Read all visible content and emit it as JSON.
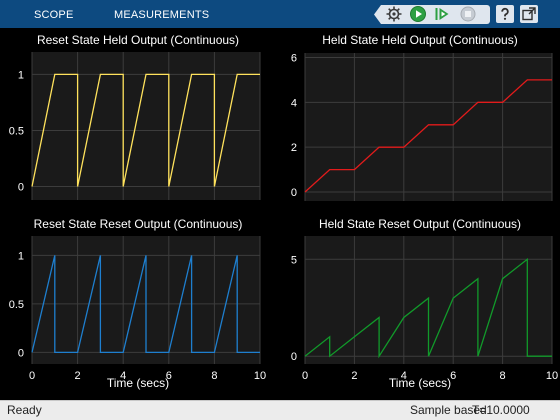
{
  "toolstrip": {
    "tabs": [
      {
        "label": "SCOPE"
      },
      {
        "label": "MEASUREMENTS"
      }
    ],
    "icons": [
      "scope-settings-icon",
      "run-icon",
      "step-forward-icon",
      "stop-icon",
      "help-icon",
      "undock-icon"
    ]
  },
  "colors": {
    "toolstrip": "#0d4a80",
    "axes_background": "#1a1a1a",
    "grid": "#3c3c3c",
    "axis_text": "#ffffff",
    "series": [
      "#ffe25c",
      "#e21b1b",
      "#1e7fcf",
      "#119a2a"
    ]
  },
  "chart_data": [
    {
      "type": "line",
      "title": "Reset State Held Output (Continuous)",
      "xlabel": "",
      "xlim": [
        0,
        10
      ],
      "ylim": [
        -0.12,
        1.2
      ],
      "x_ticks": [],
      "y_ticks": [
        0,
        0.5,
        1
      ],
      "y_tick_labels": [
        "0",
        "0.5",
        "1"
      ],
      "grid": true,
      "series": [
        {
          "x": [
            0,
            1,
            2,
            2,
            3,
            4,
            4,
            5,
            6,
            6,
            7,
            8,
            8,
            9,
            10
          ],
          "y": [
            0,
            1,
            1,
            0,
            1,
            1,
            0,
            1,
            1,
            0,
            1,
            1,
            0,
            1,
            1
          ]
        }
      ]
    },
    {
      "type": "line",
      "title": "Held State Held Output (Continuous)",
      "xlabel": "",
      "xlim": [
        0,
        10
      ],
      "ylim": [
        -0.4,
        6.2
      ],
      "x_ticks": [],
      "y_ticks": [
        0,
        2,
        4,
        6
      ],
      "y_tick_labels": [
        "0",
        "2",
        "4",
        "6"
      ],
      "grid": true,
      "series": [
        {
          "x": [
            0,
            1,
            2,
            3,
            4,
            5,
            6,
            7,
            8,
            9,
            10
          ],
          "y": [
            0,
            1,
            1,
            2,
            2,
            3,
            3,
            4,
            4,
            5,
            5
          ]
        }
      ]
    },
    {
      "type": "line",
      "title": "Reset State Reset Output (Continuous)",
      "xlabel": "Time (secs)",
      "xlim": [
        0,
        10
      ],
      "ylim": [
        -0.12,
        1.2
      ],
      "x_ticks": [
        0,
        2,
        4,
        6,
        8,
        10
      ],
      "x_tick_labels": [
        "0",
        "2",
        "4",
        "6",
        "8",
        "10"
      ],
      "y_ticks": [
        0,
        0.5,
        1
      ],
      "y_tick_labels": [
        "0",
        "0.5",
        "1"
      ],
      "grid": true,
      "series": [
        {
          "x": [
            0,
            1,
            1,
            2,
            3,
            3,
            4,
            5,
            5,
            6,
            7,
            7,
            8,
            9,
            9,
            10
          ],
          "y": [
            0,
            1,
            0,
            0,
            1,
            0,
            0,
            1,
            0,
            0,
            1,
            0,
            0,
            1,
            0,
            0
          ]
        }
      ]
    },
    {
      "type": "line",
      "title": "Held State Reset Output (Continuous)",
      "xlabel": "Time (secs)",
      "xlim": [
        0,
        10
      ],
      "ylim": [
        -0.4,
        6.2
      ],
      "x_ticks": [
        0,
        2,
        4,
        6,
        8,
        10
      ],
      "x_tick_labels": [
        "0",
        "2",
        "4",
        "6",
        "8",
        "10"
      ],
      "y_ticks": [
        0,
        5
      ],
      "y_tick_labels": [
        "0",
        "5"
      ],
      "grid": true,
      "series": [
        {
          "x": [
            0,
            1,
            1,
            2,
            3,
            3,
            4,
            5,
            5,
            6,
            7,
            7,
            8,
            9,
            9,
            10
          ],
          "y": [
            0,
            1,
            0,
            1,
            2,
            0,
            2,
            3,
            0,
            3,
            4,
            0,
            4,
            5,
            0,
            0
          ]
        }
      ]
    }
  ],
  "status": {
    "left": "Ready",
    "mode": "Sample based",
    "time": "T=10.0000"
  }
}
